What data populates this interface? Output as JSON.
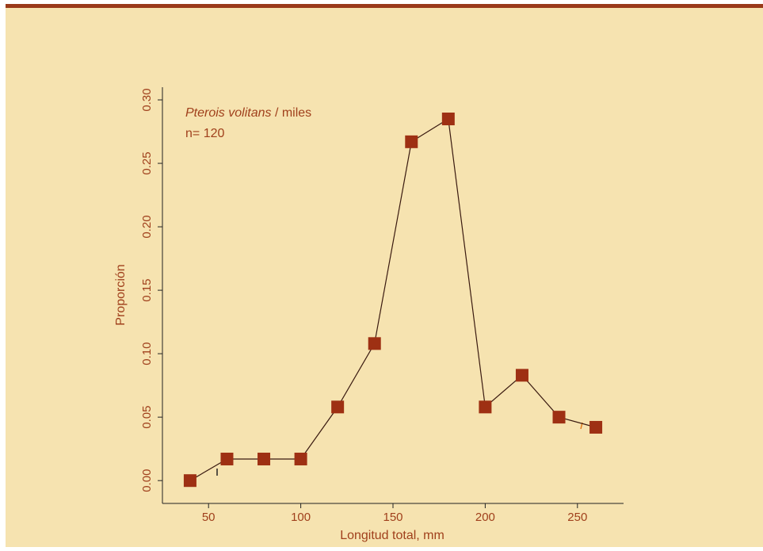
{
  "chart_data": {
    "type": "line",
    "xlabel": "Longitud total, mm",
    "ylabel": "Proporción",
    "xlim": [
      25,
      275
    ],
    "ylim": [
      -0.018,
      0.31
    ],
    "x_ticks": [
      50,
      100,
      150,
      200,
      250
    ],
    "y_ticks": [
      "0.00",
      "0.05",
      "0.10",
      "0.15",
      "0.20",
      "0.25",
      "0.30"
    ],
    "annotation": {
      "species": "Pterois volitans",
      "separator": " / ",
      "author": "miles",
      "n_label": "n= 120"
    },
    "series": [
      {
        "x": [
          40,
          60,
          80,
          100,
          120,
          140,
          160,
          180,
          200,
          220,
          240,
          260
        ],
        "y": [
          0.0,
          0.017,
          0.017,
          0.017,
          0.058,
          0.108,
          0.267,
          0.285,
          0.058,
          0.083,
          0.05,
          0.042
        ]
      }
    ],
    "marker_color": "#9e3013",
    "line_color": "#3a1a10",
    "text_color": "#a0401c"
  }
}
